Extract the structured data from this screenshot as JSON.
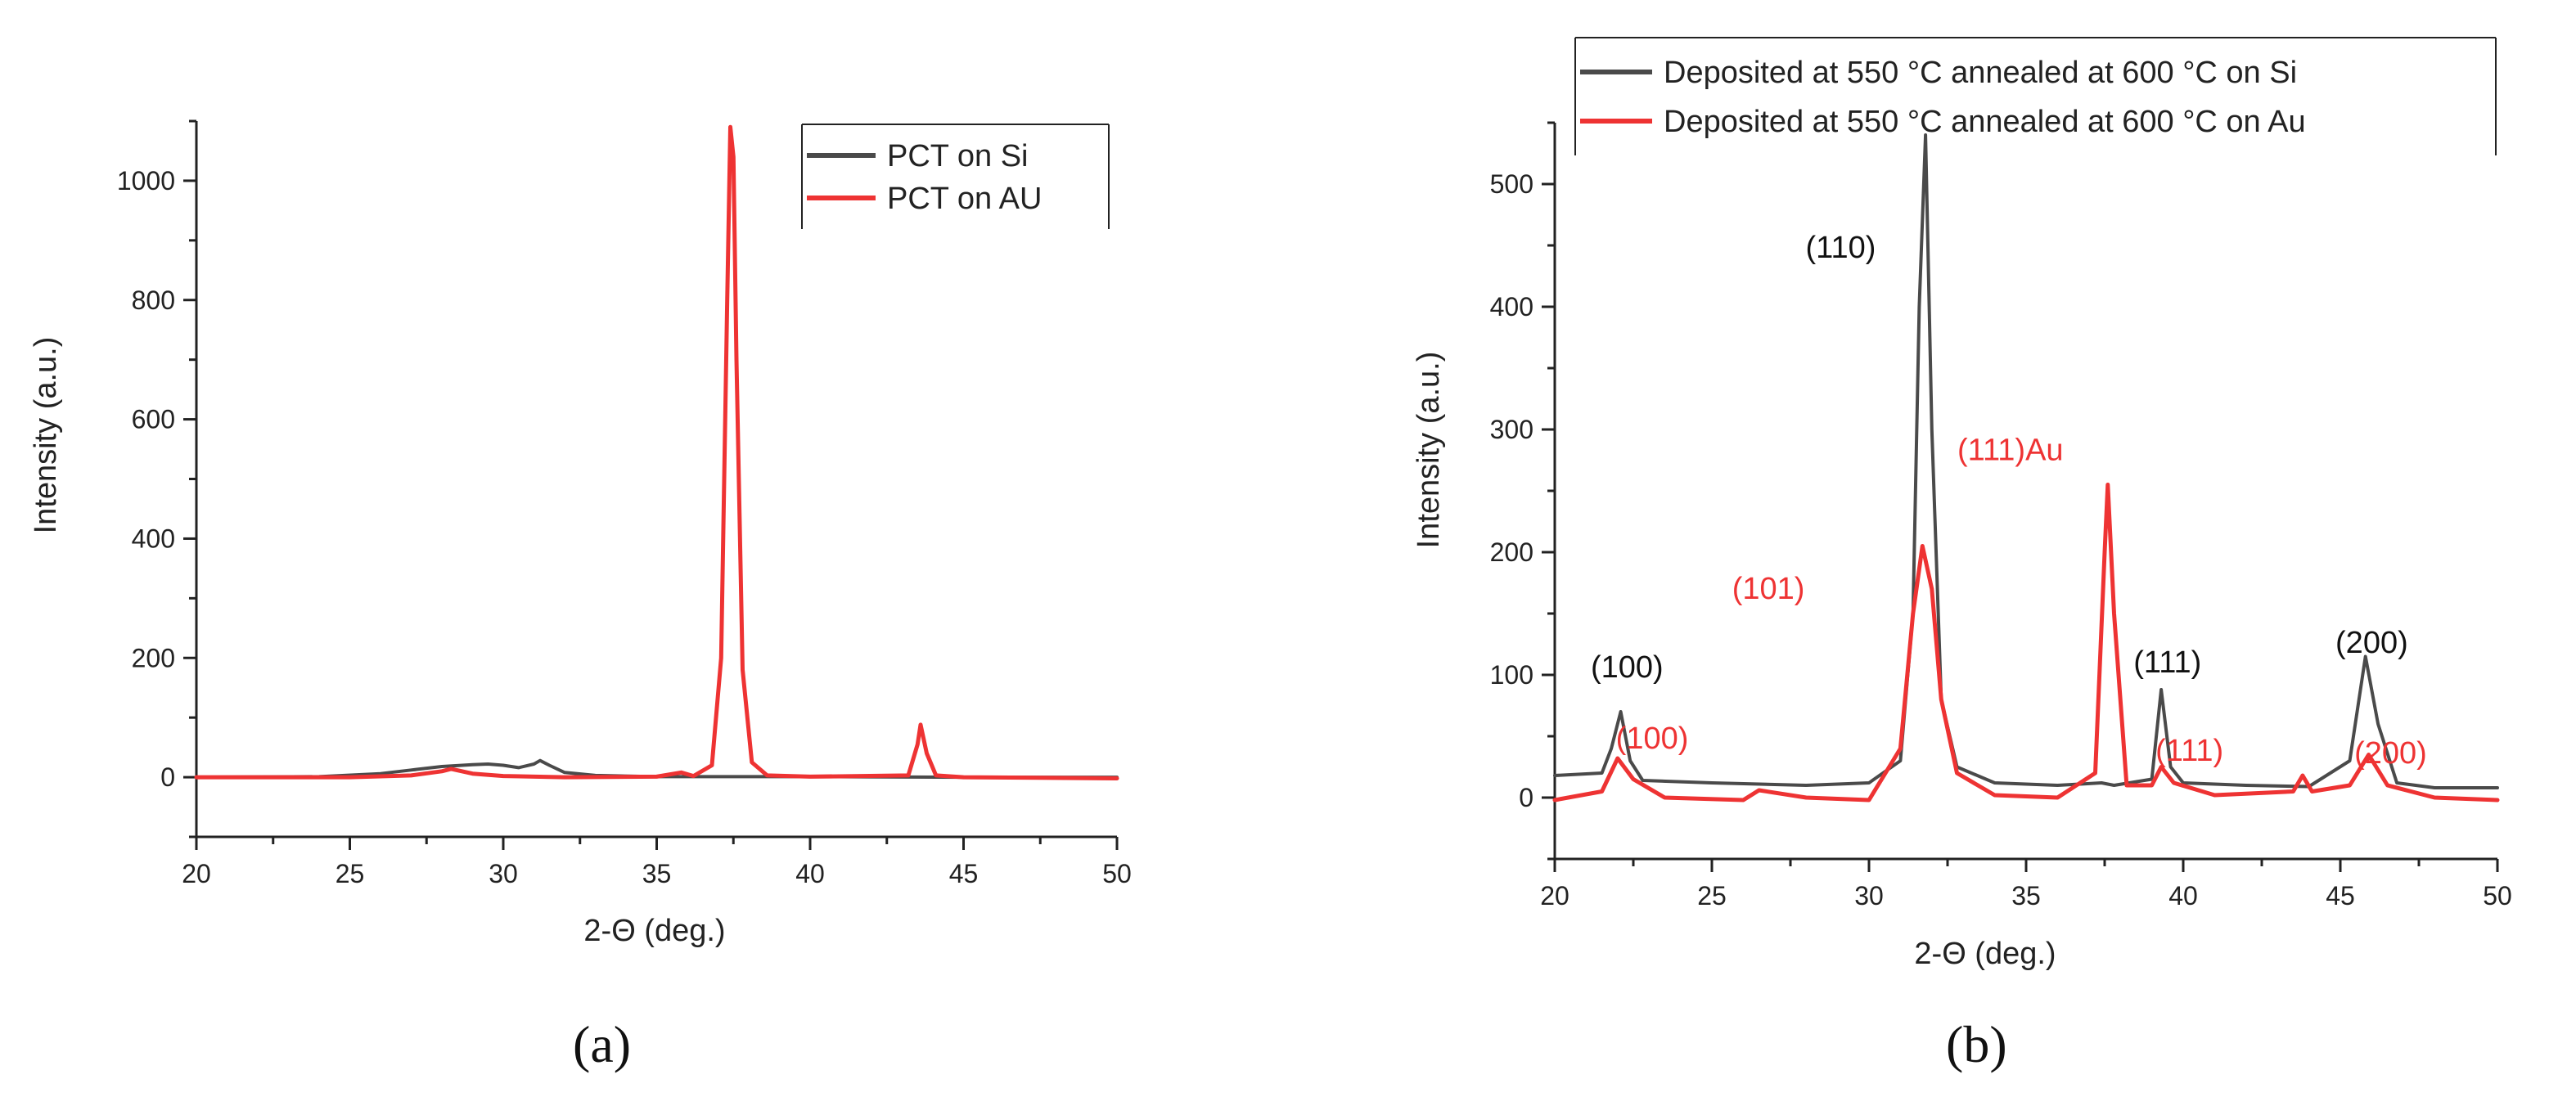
{
  "colors": {
    "series_dark": "#4a4a4a",
    "series_red": "#ee3333",
    "axis": "#222222"
  },
  "captions": {
    "a": "(a)",
    "b": "(b)"
  },
  "chart_data": [
    {
      "id": "a",
      "type": "line",
      "xlabel": "2-Θ (deg.)",
      "ylabel": "Intensity (a.u.)",
      "xlim": [
        20,
        50
      ],
      "ylim": [
        -100,
        1100
      ],
      "xticks": [
        20,
        25,
        30,
        35,
        40,
        45,
        50
      ],
      "xtick_labels": [
        "20",
        "25",
        "30",
        "35",
        "40",
        "45",
        "50"
      ],
      "yticks": [
        0,
        200,
        400,
        600,
        800,
        1000
      ],
      "ytick_labels": [
        "0",
        "200",
        "400",
        "600",
        "800",
        "1000"
      ],
      "legend_position": "top-right",
      "series": [
        {
          "name": "PCT on Si",
          "color": "#4a4a4a",
          "x": [
            20,
            24,
            26,
            27,
            28,
            29,
            29.5,
            30,
            30.5,
            31,
            31.2,
            31.5,
            32,
            33,
            35,
            37,
            40,
            45,
            50
          ],
          "y": [
            0,
            1,
            6,
            12,
            18,
            21,
            22,
            20,
            16,
            22,
            28,
            20,
            8,
            3,
            1,
            1,
            1,
            0,
            0
          ]
        },
        {
          "name": "PCT on AU",
          "color": "#ee3333",
          "x": [
            20,
            25,
            27,
            28,
            28.3,
            29,
            30,
            32,
            35,
            35.8,
            36.2,
            36.8,
            37.1,
            37.3,
            37.4,
            37.5,
            37.6,
            37.8,
            38.1,
            38.6,
            40,
            43.2,
            43.5,
            43.6,
            43.8,
            44.1,
            45,
            50
          ],
          "y": [
            0,
            0,
            3,
            10,
            14,
            6,
            2,
            0,
            1,
            8,
            2,
            20,
            200,
            800,
            1090,
            1040,
            700,
            180,
            25,
            3,
            1,
            3,
            55,
            88,
            40,
            3,
            0,
            -2
          ]
        }
      ]
    },
    {
      "id": "b",
      "type": "line",
      "xlabel": "2-Θ (deg.)",
      "ylabel": "Intensity (a.u.)",
      "xlim": [
        20,
        50
      ],
      "ylim": [
        -50,
        550
      ],
      "xticks": [
        20,
        25,
        30,
        35,
        40,
        45,
        50
      ],
      "xtick_labels": [
        "20",
        "25",
        "30",
        "35",
        "40",
        "45",
        "50"
      ],
      "yticks": [
        0,
        100,
        200,
        300,
        400,
        500
      ],
      "ytick_labels": [
        "0",
        "100",
        "200",
        "300",
        "400",
        "500"
      ],
      "legend_position": "top-right",
      "series": [
        {
          "name": "Deposited at 550 °C annealed at 600 °C on Si",
          "color": "#4a4a4a",
          "x": [
            20,
            21.5,
            21.8,
            22.1,
            22.4,
            22.8,
            25,
            28,
            30,
            31,
            31.4,
            31.6,
            31.8,
            32,
            32.3,
            32.8,
            34,
            36,
            37.4,
            37.8,
            39,
            39.3,
            39.6,
            40,
            42,
            44,
            45.3,
            45.8,
            46.2,
            46.8,
            48,
            50
          ],
          "y": [
            18,
            20,
            40,
            70,
            30,
            14,
            12,
            10,
            12,
            30,
            150,
            400,
            540,
            300,
            80,
            25,
            12,
            10,
            12,
            10,
            15,
            88,
            25,
            12,
            10,
            9,
            30,
            115,
            60,
            12,
            8,
            8
          ]
        },
        {
          "name": "Deposited at 550 °C annealed at 600 °C on Au",
          "color": "#ee3333",
          "x": [
            20,
            21.5,
            22,
            22.5,
            23.5,
            26,
            26.5,
            28,
            30,
            31,
            31.4,
            31.7,
            32,
            32.3,
            32.8,
            34,
            36,
            37.2,
            37.5,
            37.6,
            37.8,
            38.2,
            39,
            39.3,
            39.7,
            41,
            43.5,
            43.8,
            44.1,
            45.3,
            45.9,
            46.5,
            48,
            50
          ],
          "y": [
            -2,
            5,
            32,
            15,
            0,
            -2,
            6,
            0,
            -2,
            40,
            150,
            205,
            170,
            80,
            20,
            2,
            0,
            20,
            200,
            255,
            150,
            10,
            10,
            25,
            12,
            2,
            5,
            18,
            5,
            10,
            35,
            10,
            0,
            -2
          ]
        }
      ],
      "annotations": [
        {
          "text": "(110)",
          "x": 29.1,
          "y": 440,
          "color": "#111111"
        },
        {
          "text": "(100)",
          "x": 22.3,
          "y": 98,
          "color": "#111111"
        },
        {
          "text": "(111)",
          "x": 39.5,
          "y": 102,
          "color": "#111111"
        },
        {
          "text": "(200)",
          "x": 46.0,
          "y": 118,
          "color": "#111111"
        },
        {
          "text": "(101)",
          "x": 26.8,
          "y": 162,
          "color": "#ee3333"
        },
        {
          "text": "(100)",
          "x": 23.1,
          "y": 40,
          "color": "#ee3333"
        },
        {
          "text": "(111)Au",
          "x": 34.5,
          "y": 275,
          "color": "#ee3333"
        },
        {
          "text": "(111)",
          "x": 40.2,
          "y": 30,
          "color": "#ee3333"
        },
        {
          "text": "(200)",
          "x": 46.6,
          "y": 28,
          "color": "#ee3333"
        }
      ]
    }
  ]
}
